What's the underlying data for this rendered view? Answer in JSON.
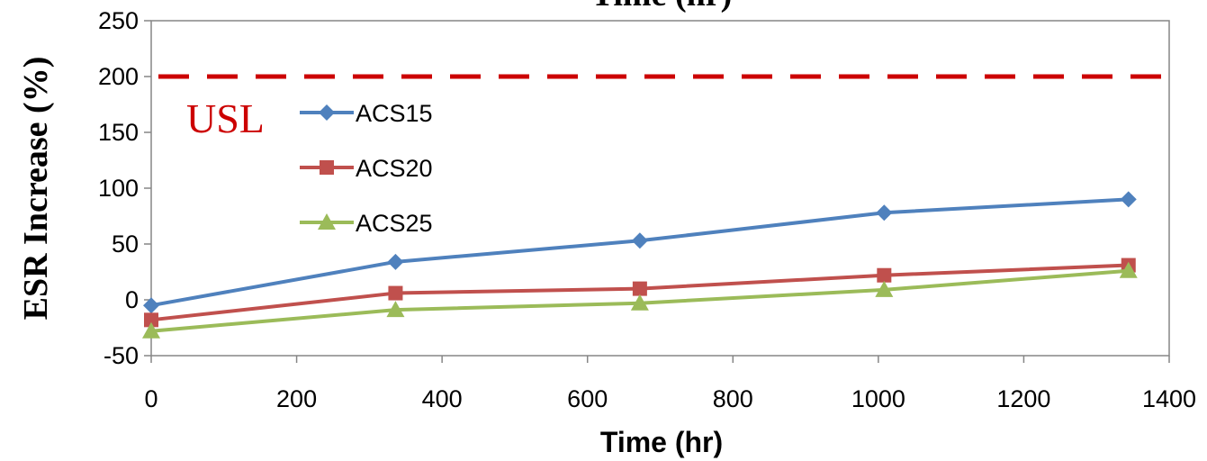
{
  "chart_data": {
    "type": "line",
    "title": "Time (hr)",
    "xlabel": "Time (hr)",
    "ylabel": "ESR Increase (%)",
    "xlim": [
      0,
      1400
    ],
    "ylim": [
      -50,
      250
    ],
    "xticks": [
      0,
      200,
      400,
      600,
      800,
      1000,
      1200,
      1400
    ],
    "yticks": [
      -50,
      0,
      50,
      100,
      150,
      200,
      250
    ],
    "grid": false,
    "legend_position": "upper-left",
    "series": [
      {
        "name": "ACS15",
        "color": "#4F81BD",
        "marker": "diamond",
        "x": [
          0,
          336,
          672,
          1008,
          1344
        ],
        "y": [
          -5,
          34,
          53,
          78,
          90
        ]
      },
      {
        "name": "ACS20",
        "color": "#C0504D",
        "marker": "square",
        "x": [
          0,
          336,
          672,
          1008,
          1344
        ],
        "y": [
          -18,
          6,
          10,
          22,
          31
        ]
      },
      {
        "name": "ACS25",
        "color": "#9BBB59",
        "marker": "triangle",
        "x": [
          0,
          336,
          672,
          1008,
          1344
        ],
        "y": [
          -28,
          -9,
          -3,
          9,
          26
        ]
      }
    ],
    "reference_line": {
      "label": "USL",
      "y": 200,
      "color": "#CC0000",
      "style": "dashed"
    }
  }
}
